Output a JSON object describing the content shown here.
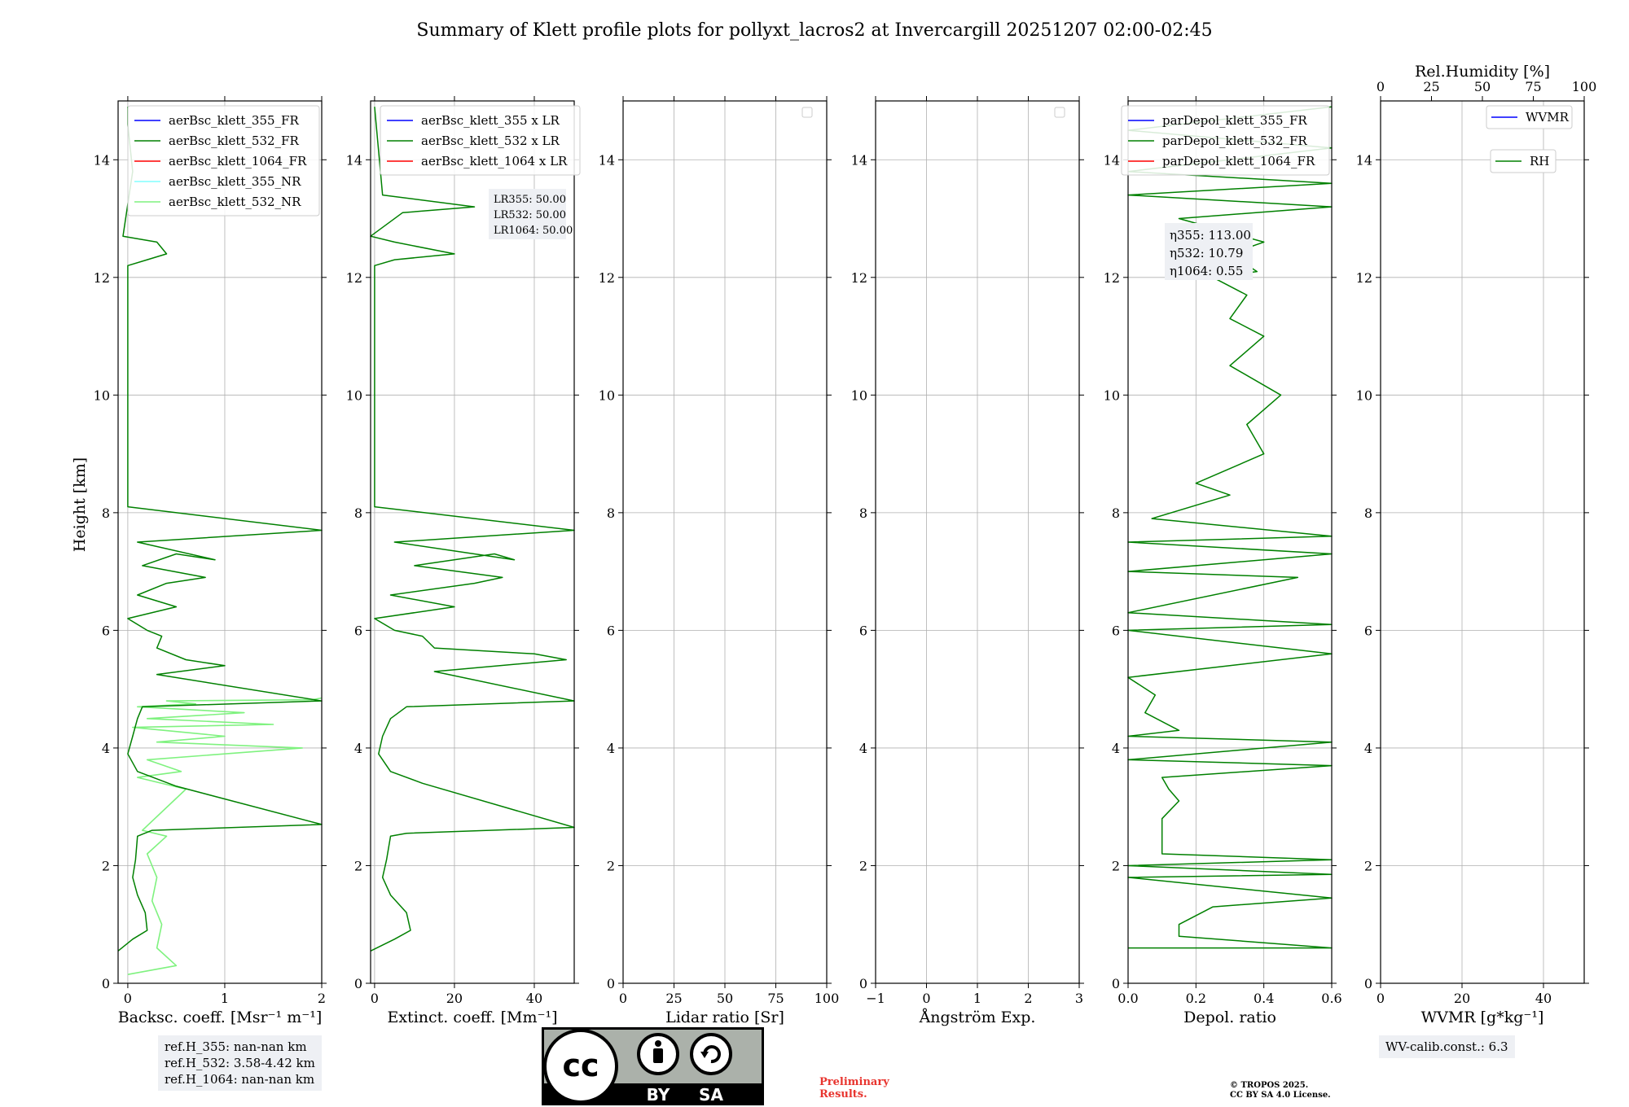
{
  "title": "Summary of Klett profile plots for pollyxt_lacros2 at Invercargill 20251207 02:00-02:45",
  "ylabel": "Height [km]",
  "yticks": [
    "0",
    "2",
    "4",
    "6",
    "8",
    "10",
    "12",
    "14"
  ],
  "colors": {
    "c355": "#0000ff",
    "c532": "#008000",
    "c1064": "#ff0000",
    "c355nr": "#80ffff",
    "c532nr": "#7ff27f"
  },
  "chart_data": [
    {
      "type": "line",
      "xlabel": "Backsc. coeff. [Msr⁻¹ m⁻¹]",
      "xlim": [
        -0.1,
        2
      ],
      "xticks": [
        "0",
        "1",
        "2"
      ],
      "ylim": [
        0,
        15
      ],
      "legend": [
        "aerBsc_klett_355_FR",
        "aerBsc_klett_532_FR",
        "aerBsc_klett_1064_FR",
        "aerBsc_klett_355_NR",
        "aerBsc_klett_532_NR"
      ],
      "series": [
        {
          "name": "aerBsc_klett_532_NR",
          "x": [
            0.0,
            0.5,
            0.3,
            0.35,
            0.25,
            0.3,
            0.2,
            0.4,
            0.15,
            0.6,
            0.1,
            0.55,
            0.2,
            1.8,
            0.3,
            1.0,
            0.05,
            1.5,
            0.2,
            1.2,
            0.1,
            0.7,
            0.4,
            1.9,
            2.0
          ],
          "y": [
            0.15,
            0.3,
            0.6,
            1.0,
            1.4,
            1.8,
            2.2,
            2.5,
            2.6,
            3.3,
            3.5,
            3.6,
            3.8,
            4.0,
            4.1,
            4.2,
            4.35,
            4.4,
            4.5,
            4.6,
            4.7,
            4.75,
            4.8,
            4.82,
            4.85
          ]
        },
        {
          "name": "aerBsc_klett_532_FR",
          "x": [
            -0.1,
            0.05,
            0.2,
            0.18,
            0.1,
            0.05,
            0.08,
            0.1,
            0.25,
            2.0,
            0.5,
            0.1,
            0.0,
            0.05,
            0.1,
            0.15,
            2.0,
            0.3,
            1.0,
            0.6,
            0.3,
            0.35,
            0.2,
            0.0,
            0.5,
            0.1,
            0.4,
            0.8,
            0.15,
            0.5,
            0.9,
            0.1,
            2.0,
            0.0,
            0.0,
            0.2,
            0.4,
            0.3,
            -0.05,
            0.05,
            0.0,
            0.0
          ],
          "y": [
            0.55,
            0.75,
            0.9,
            1.2,
            1.5,
            1.8,
            2.1,
            2.5,
            2.6,
            2.7,
            3.35,
            3.6,
            3.9,
            4.2,
            4.5,
            4.7,
            4.8,
            5.25,
            5.4,
            5.5,
            5.7,
            5.9,
            6.0,
            6.2,
            6.4,
            6.6,
            6.8,
            6.9,
            7.1,
            7.3,
            7.2,
            7.5,
            7.7,
            8.1,
            12.2,
            12.3,
            12.4,
            12.6,
            12.7,
            13.8,
            14.6,
            14.9
          ]
        }
      ]
    },
    {
      "type": "line",
      "xlabel": "Extinct. coeff. [Mm⁻¹]",
      "xlim": [
        -1,
        50
      ],
      "xticks": [
        "0",
        "20",
        "40"
      ],
      "ylim": [
        0,
        15
      ],
      "legend": [
        "aerBsc_klett_355 x LR",
        "aerBsc_klett_532 x LR",
        "aerBsc_klett_1064 x LR"
      ],
      "annotation": [
        "LR355: 50.00",
        "LR532: 50.00",
        "LR1064: 50.00"
      ],
      "series": [
        {
          "name": "aerBsc_klett_532 x LR",
          "x": [
            -1,
            5,
            9,
            8,
            4,
            2,
            3,
            4,
            8,
            50,
            12,
            4,
            1,
            2,
            4,
            8,
            50,
            15,
            48,
            40,
            15,
            12,
            5,
            0,
            20,
            4,
            25,
            32,
            10,
            30,
            35,
            5,
            50,
            0,
            0,
            5,
            20,
            5,
            -1,
            7,
            25,
            2,
            0
          ],
          "y": [
            0.55,
            0.75,
            0.9,
            1.2,
            1.5,
            1.8,
            2.1,
            2.5,
            2.55,
            2.65,
            3.4,
            3.6,
            3.9,
            4.2,
            4.5,
            4.7,
            4.8,
            5.3,
            5.5,
            5.6,
            5.7,
            5.9,
            6.0,
            6.2,
            6.4,
            6.6,
            6.8,
            6.9,
            7.1,
            7.3,
            7.2,
            7.5,
            7.7,
            8.1,
            12.2,
            12.3,
            12.4,
            12.6,
            12.7,
            13.1,
            13.2,
            13.4,
            14.9
          ]
        }
      ]
    },
    {
      "type": "line",
      "xlabel": "Lidar ratio [Sr]",
      "xlim": [
        0,
        100
      ],
      "xticks": [
        "0",
        "25",
        "50",
        "75",
        "100"
      ],
      "ylim": [
        0,
        15
      ],
      "series": []
    },
    {
      "type": "line",
      "xlabel": "Ångström Exp.",
      "xlim": [
        -1,
        3
      ],
      "xticks": [
        "−1",
        "0",
        "1",
        "2",
        "3"
      ],
      "ylim": [
        0,
        15
      ],
      "series": []
    },
    {
      "type": "line",
      "xlabel": "Depol. ratio",
      "xlim": [
        0,
        0.6
      ],
      "xticks": [
        "0.0",
        "0.2",
        "0.4",
        "0.6"
      ],
      "ylim": [
        0,
        15
      ],
      "legend": [
        "parDepol_klett_355_FR",
        "parDepol_klett_532_FR",
        "parDepol_klett_1064_FR"
      ],
      "annotation": [
        "η355: 113.00",
        "η532: 10.79",
        "η1064: 0.55"
      ],
      "series": [
        {
          "name": "parDepol_klett_532_FR",
          "x": [
            0.0,
            0.6,
            0.15,
            0.15,
            0.25,
            0.6,
            0.0,
            0.6,
            0.0,
            0.6,
            0.1,
            0.1,
            0.15,
            0.12,
            0.1,
            0.6,
            0.0,
            0.6,
            0.0,
            0.15,
            0.05,
            0.08,
            0.0,
            0.6,
            0.0,
            0.6,
            0.0,
            0.5,
            0.0,
            0.6,
            0.0,
            0.6,
            0.07,
            0.3,
            0.2,
            0.4,
            0.35,
            0.45,
            0.3,
            0.4,
            0.3,
            0.35,
            0.25,
            0.38,
            0.3,
            0.4,
            0.15,
            0.6,
            0.0,
            0.6,
            0.0,
            0.6,
            0.0,
            0.6
          ],
          "y": [
            0.6,
            0.6,
            0.8,
            1.0,
            1.3,
            1.45,
            1.8,
            1.85,
            2.0,
            2.1,
            2.2,
            2.8,
            3.1,
            3.3,
            3.5,
            3.7,
            3.8,
            4.1,
            4.2,
            4.3,
            4.6,
            4.9,
            5.2,
            5.6,
            6.0,
            6.1,
            6.3,
            6.9,
            7.0,
            7.3,
            7.5,
            7.6,
            7.9,
            8.3,
            8.5,
            9.0,
            9.5,
            10.0,
            10.5,
            11.0,
            11.3,
            11.7,
            12.0,
            12.1,
            12.4,
            12.6,
            13.0,
            13.2,
            13.4,
            13.6,
            13.8,
            14.2,
            14.5,
            14.9
          ]
        }
      ]
    },
    {
      "type": "line",
      "xlabel": "WVMR [g*kg⁻¹]",
      "xlim": [
        0,
        50
      ],
      "xticks": [
        "0",
        "20",
        "40"
      ],
      "top_xlabel": "Rel.Humidity [%]",
      "top_xticks": [
        "0",
        "25",
        "50",
        "75",
        "100"
      ],
      "ylim": [
        0,
        15
      ],
      "legend": [
        "WVMR",
        "RH"
      ],
      "series": []
    }
  ],
  "refbox": [
    "ref.H_355: nan-nan km",
    "ref.H_532: 3.58-4.42 km",
    "ref.H_1064: nan-nan km"
  ],
  "wvcalib": "WV-calib.const.: 6.3",
  "cc_badge": {
    "cc": "cc",
    "by": "BY",
    "sa": "SA"
  },
  "preliminary": [
    "Preliminary",
    "Results."
  ],
  "copyright": [
    "© TROPOS 2025.",
    "CC BY SA 4.0 License."
  ]
}
